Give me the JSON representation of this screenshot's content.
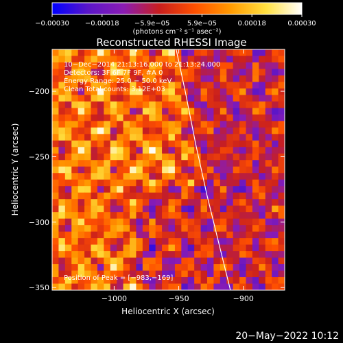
{
  "chart_data": {
    "type": "heatmap",
    "title": "Reconstructed RHESSI Image",
    "xlabel": "Heliocentric X (arcsec)",
    "ylabel": "Heliocentric Y (arcsec)",
    "xlim": [
      -1048,
      -868
    ],
    "ylim": [
      -352,
      -168
    ],
    "x_ticks": [
      -1000,
      -950,
      -900
    ],
    "x_tick_labels": [
      "−1000",
      "−950",
      "−900"
    ],
    "y_ticks": [
      -200,
      -250,
      -300,
      -350
    ],
    "y_tick_labels": [
      "−200",
      "−250",
      "−300",
      "−350"
    ],
    "grid_cols": 36,
    "grid_rows": 37,
    "limb_curve": [
      [
        -952,
        -168
      ],
      [
        -945,
        -200
      ],
      [
        -937,
        -240
      ],
      [
        -928,
        -280
      ],
      [
        -918,
        -320
      ],
      [
        -910,
        -352
      ]
    ],
    "peak": {
      "x": -983,
      "y": -169
    },
    "colorbar": {
      "unit_label": "(photons cm⁻² s⁻¹ asec⁻²)",
      "range": [
        -0.0003,
        0.0003
      ],
      "tick_labels": [
        "−0.00030",
        "−0.00018",
        "−5.9e−05",
        "5.9e−05",
        "0.00018",
        "0.00030"
      ],
      "stops": [
        "#0000ff",
        "#5a16c8",
        "#8a1cb4",
        "#c81e1e",
        "#ff5000",
        "#ff9a00",
        "#ffe040",
        "#ffffff"
      ]
    },
    "annotations": {
      "time_range": "10−Dec−2014 21:13:16.000 to 21:13:24.000",
      "detectors": "Detectors: 3F 6F 7F 9F, #A 0",
      "energy": "Energy Range: 25.0 − 50.0 keV",
      "method": "Clean    Total counts: 3.12E+03",
      "peak_text": "Position of Peak = [−983,−169]"
    }
  },
  "footer": {
    "date": "20−May−2022 10:12"
  }
}
